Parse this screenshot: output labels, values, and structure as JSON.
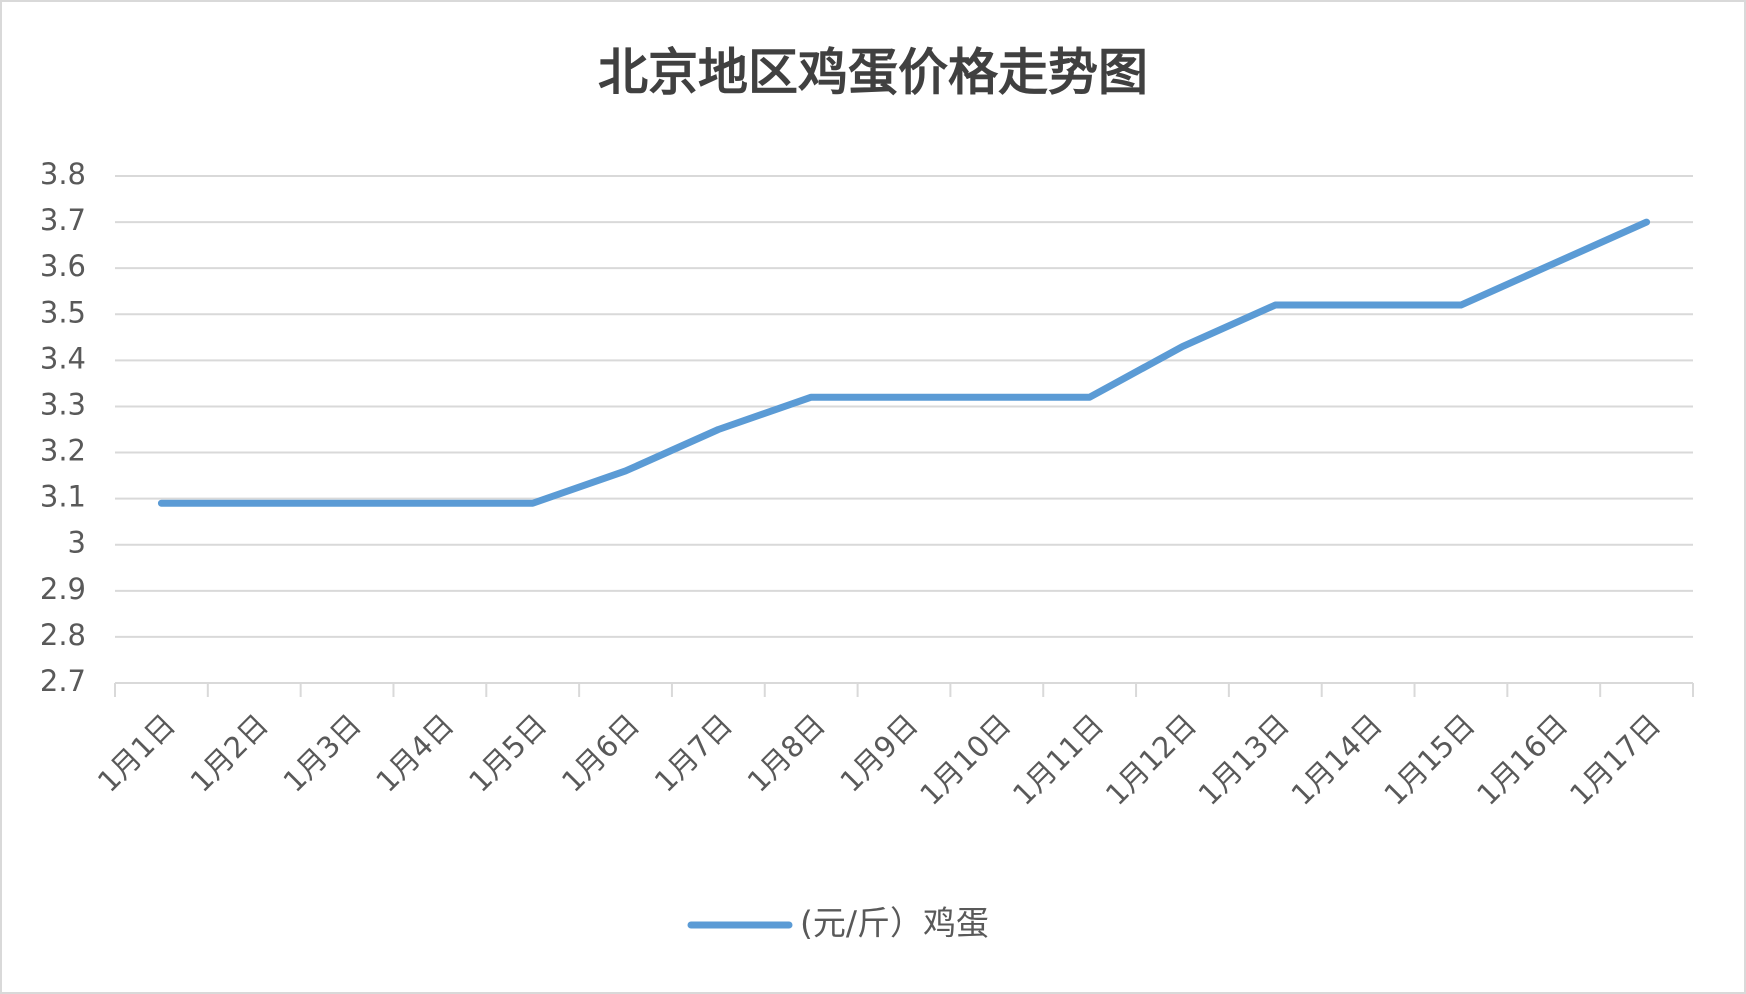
{
  "chart_data": {
    "type": "line",
    "title": "北京地区鸡蛋价格走势图",
    "categories": [
      "1月1日",
      "1月2日",
      "1月3日",
      "1月4日",
      "1月5日",
      "1月6日",
      "1月7日",
      "1月8日",
      "1月9日",
      "1月10日",
      "1月11日",
      "1月12日",
      "1月13日",
      "1月14日",
      "1月15日",
      "1月16日",
      "1月17日"
    ],
    "series": [
      {
        "name": "(元/斤）鸡蛋",
        "color": "#5b9bd5",
        "values": [
          3.09,
          3.09,
          3.09,
          3.09,
          3.09,
          3.16,
          3.25,
          3.32,
          3.32,
          3.32,
          3.32,
          3.43,
          3.52,
          3.52,
          3.52,
          3.61,
          3.7
        ]
      }
    ],
    "ylim": [
      2.7,
      3.8
    ],
    "yticks": [
      2.7,
      2.8,
      2.9,
      3,
      3.1,
      3.2,
      3.3,
      3.4,
      3.5,
      3.6,
      3.7,
      3.8
    ],
    "grid": true,
    "legend": "bottom"
  }
}
